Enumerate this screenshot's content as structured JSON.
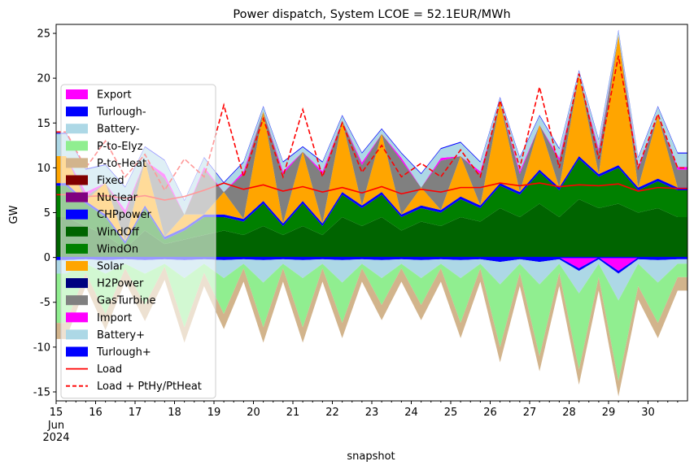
{
  "chart_data": {
    "type": "area",
    "title": "Power dispatch, System LCOE = 52.1EUR/MWh",
    "xlabel": "snapshot",
    "ylabel": "GW",
    "ylim": [
      -16,
      26
    ],
    "xlim": [
      "2024-06-15",
      "2024-06-30 23:00"
    ],
    "yticks": [
      -15,
      -10,
      -5,
      0,
      5,
      10,
      15,
      20,
      25
    ],
    "xticks": [
      {
        "pos": 15,
        "label": "15"
      },
      {
        "pos": 16,
        "label": "16"
      },
      {
        "pos": 17,
        "label": "17"
      },
      {
        "pos": 18,
        "label": "18"
      },
      {
        "pos": 19,
        "label": "19"
      },
      {
        "pos": 20,
        "label": "20"
      },
      {
        "pos": 21,
        "label": "21"
      },
      {
        "pos": 22,
        "label": "22"
      },
      {
        "pos": 23,
        "label": "23"
      },
      {
        "pos": 24,
        "label": "24"
      },
      {
        "pos": 25,
        "label": "25"
      },
      {
        "pos": 26,
        "label": "26"
      },
      {
        "pos": 27,
        "label": "27"
      },
      {
        "pos": 28,
        "label": "28"
      },
      {
        "pos": 29,
        "label": "29"
      },
      {
        "pos": 30,
        "label": "30"
      }
    ],
    "xtick_sublabels": [
      "Jun",
      "2024"
    ],
    "grid": false,
    "legend_position": "left",
    "stack_positive": [
      {
        "name": "Nuclear",
        "color": "#800080",
        "values": [
          0,
          0,
          0,
          0,
          0,
          0,
          0,
          0,
          0,
          0,
          0,
          0,
          0,
          0,
          0,
          0,
          0,
          0,
          0,
          0,
          0,
          0,
          0,
          0,
          0,
          0,
          0,
          0,
          0,
          0,
          0,
          0
        ]
      },
      {
        "name": "Fixed",
        "color": "#800000",
        "values": [
          0,
          0,
          0,
          0,
          0,
          0,
          0,
          0,
          0,
          0,
          0,
          0,
          0,
          0,
          0,
          0,
          0,
          0,
          0,
          0,
          0,
          0,
          0,
          0,
          0,
          0,
          0,
          0,
          0,
          0,
          0,
          0
        ]
      },
      {
        "name": "WindOff",
        "color": "#006400",
        "values": [
          4.5,
          3.5,
          2.5,
          1.0,
          3.0,
          1.5,
          2.0,
          2.5,
          3.0,
          2.5,
          3.5,
          2.5,
          3.5,
          2.5,
          4.5,
          3.5,
          4.5,
          3.0,
          4.0,
          3.5,
          4.5,
          4.0,
          5.5,
          4.5,
          6.0,
          4.5,
          6.5,
          5.5,
          6.0,
          5.0,
          5.5,
          4.5
        ]
      },
      {
        "name": "WindOn",
        "color": "#008000",
        "values": [
          3.5,
          2.5,
          2.0,
          0.5,
          2.5,
          0.5,
          1.0,
          2.0,
          1.5,
          1.5,
          2.5,
          1.0,
          2.5,
          1.0,
          2.5,
          2.0,
          2.5,
          1.5,
          1.5,
          1.5,
          2.0,
          1.5,
          2.5,
          2.5,
          3.5,
          3.0,
          4.5,
          3.5,
          4.0,
          2.5,
          3.0,
          3.0
        ]
      },
      {
        "name": "CHPpower",
        "color": "#0000ff",
        "values": [
          0.3,
          0.3,
          0.3,
          0.3,
          0.3,
          0.3,
          0.3,
          0.3,
          0.3,
          0.3,
          0.3,
          0.3,
          0.3,
          0.3,
          0.3,
          0.3,
          0.3,
          0.3,
          0.3,
          0.3,
          0.3,
          0.3,
          0.3,
          0.3,
          0.3,
          0.3,
          0.3,
          0.3,
          0.3,
          0.3,
          0.3,
          0.3
        ]
      },
      {
        "name": "Solar",
        "color": "#ffa500",
        "values": [
          3.0,
          0.0,
          3.5,
          0.0,
          5.0,
          0.0,
          1.5,
          0.0,
          2.5,
          0.0,
          10.0,
          0.0,
          5.5,
          0.0,
          8.0,
          0.0,
          6.5,
          0.0,
          2.0,
          0.0,
          4.5,
          0.0,
          9.0,
          0.0,
          5.0,
          0.0,
          9.0,
          0.0,
          14.5,
          0.0,
          7.0,
          0.0
        ]
      },
      {
        "name": "H2Power",
        "color": "#000080",
        "values": [
          0,
          0,
          0,
          0,
          0,
          0,
          0,
          0,
          0,
          0,
          0,
          0,
          0,
          0,
          0,
          0,
          0,
          0,
          0,
          0,
          0,
          0,
          0,
          0,
          0,
          0,
          0,
          0,
          0,
          0,
          0,
          0
        ]
      },
      {
        "name": "GasTurbine",
        "color": "#808080",
        "values": [
          0,
          0.5,
          0,
          3.0,
          0,
          6.5,
          0,
          5.0,
          0,
          5.0,
          0,
          5.5,
          0,
          5.5,
          0,
          4.5,
          0,
          6.0,
          0,
          5.5,
          0,
          3.5,
          0,
          2.0,
          0,
          3.0,
          0,
          2.5,
          0,
          2.0,
          0,
          2.0
        ]
      },
      {
        "name": "Import",
        "color": "#ff00ff",
        "values": [
          0,
          0.5,
          0,
          0.5,
          0,
          0.5,
          0,
          0.3,
          0,
          0.3,
          0,
          0.3,
          0,
          0.3,
          0,
          0.3,
          0,
          0.3,
          0,
          0.3,
          0,
          0.3,
          0,
          0.3,
          0,
          0.3,
          0,
          0.3,
          0,
          0.3,
          0,
          0.3
        ]
      },
      {
        "name": "Battery+",
        "color": "#add8e6",
        "values": [
          2.5,
          2.5,
          2.0,
          2.5,
          1.5,
          1.5,
          1.5,
          1.0,
          1.0,
          1.0,
          0.5,
          1.0,
          0.5,
          1.0,
          0.5,
          1.0,
          0.5,
          0.5,
          1.5,
          1.0,
          1.5,
          1.0,
          0.5,
          1.5,
          1.0,
          1.0,
          0.5,
          1.0,
          0.5,
          1.0,
          1.0,
          1.5
        ]
      },
      {
        "name": "Turlough+",
        "color": "#0000ff",
        "values": [
          0.1,
          0.1,
          0.1,
          0.1,
          0.1,
          0.1,
          0.1,
          0.1,
          0.1,
          0.1,
          0.1,
          0.1,
          0.1,
          0.1,
          0.1,
          0.1,
          0.1,
          0.1,
          0.1,
          0.1,
          0.1,
          0.1,
          0.1,
          0.1,
          0.1,
          0.1,
          0.1,
          0.1,
          0.1,
          0.1,
          0.1,
          0.1
        ]
      }
    ],
    "stack_negative": [
      {
        "name": "Export",
        "color": "#ff00ff",
        "values": [
          0,
          0,
          0,
          0,
          0,
          0,
          0,
          0,
          0,
          0,
          0,
          0,
          0,
          0,
          0,
          0,
          0,
          0,
          0,
          0,
          0,
          0,
          0,
          0,
          0,
          0,
          -1.2,
          0,
          -1.5,
          0,
          0,
          0
        ]
      },
      {
        "name": "Turlough-",
        "color": "#0000ff",
        "values": [
          -0.3,
          -0.2,
          -0.3,
          -0.2,
          -0.3,
          -0.2,
          -0.3,
          -0.2,
          -0.3,
          -0.2,
          -0.3,
          -0.2,
          -0.3,
          -0.2,
          -0.3,
          -0.2,
          -0.3,
          -0.2,
          -0.3,
          -0.2,
          -0.3,
          -0.2,
          -0.5,
          -0.2,
          -0.5,
          -0.2,
          -0.3,
          -0.2,
          -0.3,
          -0.2,
          -0.3,
          -0.2
        ]
      },
      {
        "name": "Battery-",
        "color": "#add8e6",
        "values": [
          -1.5,
          -0.5,
          -1.5,
          -0.5,
          -1.5,
          -0.5,
          -2.0,
          -0.5,
          -2.0,
          -0.5,
          -2.5,
          -0.5,
          -2.0,
          -0.5,
          -2.5,
          -0.5,
          -2.0,
          -0.5,
          -2.0,
          -0.5,
          -2.0,
          -0.5,
          -2.5,
          -0.5,
          -2.5,
          -0.5,
          -2.5,
          -0.5,
          -3.0,
          -0.5,
          -2.5,
          -0.5
        ]
      },
      {
        "name": "P-to-Elyz",
        "color": "#90ee90",
        "values": [
          -5.5,
          -1.0,
          -4.5,
          -0.5,
          -3.5,
          -0.3,
          -5.5,
          -1.0,
          -4.0,
          -0.5,
          -5.0,
          -0.5,
          -5.5,
          -0.5,
          -4.5,
          -0.5,
          -3.0,
          -0.5,
          -3.0,
          -0.5,
          -5.0,
          -0.5,
          -7.0,
          -1.0,
          -8.0,
          -1.0,
          -8.5,
          -1.5,
          -9.0,
          -2.5,
          -4.5,
          -1.5
        ]
      },
      {
        "name": "P-to-Heat",
        "color": "#d2b48c",
        "values": [
          -1.8,
          -1.5,
          -1.8,
          -1.5,
          -1.8,
          -1.5,
          -1.7,
          -1.5,
          -1.7,
          -1.5,
          -1.7,
          -1.5,
          -1.7,
          -1.5,
          -1.7,
          -1.5,
          -1.7,
          -1.5,
          -1.7,
          -1.5,
          -1.7,
          -1.5,
          -1.7,
          -1.5,
          -1.7,
          -1.5,
          -1.7,
          -1.5,
          -1.7,
          -1.5,
          -1.7,
          -1.5
        ]
      }
    ],
    "lines": [
      {
        "name": "Load",
        "color": "#ff0000",
        "dash": "solid",
        "values": [
          7.0,
          6.8,
          6.9,
          6.6,
          6.9,
          6.4,
          6.8,
          7.5,
          8.3,
          7.6,
          8.1,
          7.4,
          7.9,
          7.3,
          7.8,
          7.2,
          7.9,
          7.1,
          7.6,
          7.3,
          7.8,
          7.8,
          8.3,
          8.0,
          8.3,
          7.9,
          8.1,
          8.0,
          8.2,
          7.4,
          7.8,
          7.7
        ]
      },
      {
        "name": "Load + PtHy/PtHeat",
        "color": "#ff0000",
        "dash": "dashed",
        "values": [
          14.0,
          10.0,
          13.0,
          9.0,
          11.5,
          7.5,
          11.0,
          9.0,
          17.0,
          9.0,
          15.5,
          9.0,
          16.5,
          9.0,
          15.0,
          9.5,
          12.5,
          9.0,
          10.5,
          9.0,
          12.0,
          9.0,
          17.5,
          10.0,
          19.0,
          10.0,
          20.5,
          11.0,
          22.5,
          10.0,
          16.0,
          10.0
        ]
      }
    ]
  },
  "legend": [
    {
      "label": "Export",
      "color": "#ff00ff",
      "kind": "patch"
    },
    {
      "label": "Turlough-",
      "color": "#0000ff",
      "kind": "patch"
    },
    {
      "label": "Battery-",
      "color": "#add8e6",
      "kind": "patch"
    },
    {
      "label": "P-to-Elyz",
      "color": "#90ee90",
      "kind": "patch"
    },
    {
      "label": "P-to-Heat",
      "color": "#d2b48c",
      "kind": "patch"
    },
    {
      "label": "Fixed",
      "color": "#800000",
      "kind": "patch"
    },
    {
      "label": "Nuclear",
      "color": "#800080",
      "kind": "patch"
    },
    {
      "label": "CHPpower",
      "color": "#0000ff",
      "kind": "patch"
    },
    {
      "label": "WindOff",
      "color": "#006400",
      "kind": "patch"
    },
    {
      "label": "WindOn",
      "color": "#008000",
      "kind": "patch"
    },
    {
      "label": "Solar",
      "color": "#ffa500",
      "kind": "patch"
    },
    {
      "label": "H2Power",
      "color": "#000080",
      "kind": "patch"
    },
    {
      "label": "GasTurbine",
      "color": "#808080",
      "kind": "patch"
    },
    {
      "label": "Import",
      "color": "#ff00ff",
      "kind": "patch"
    },
    {
      "label": "Battery+",
      "color": "#add8e6",
      "kind": "patch"
    },
    {
      "label": "Turlough+",
      "color": "#0000ff",
      "kind": "patch"
    },
    {
      "label": "Load",
      "color": "#ff0000",
      "kind": "line"
    },
    {
      "label": "Load + PtHy/PtHeat",
      "color": "#ff0000",
      "kind": "dashed"
    }
  ]
}
